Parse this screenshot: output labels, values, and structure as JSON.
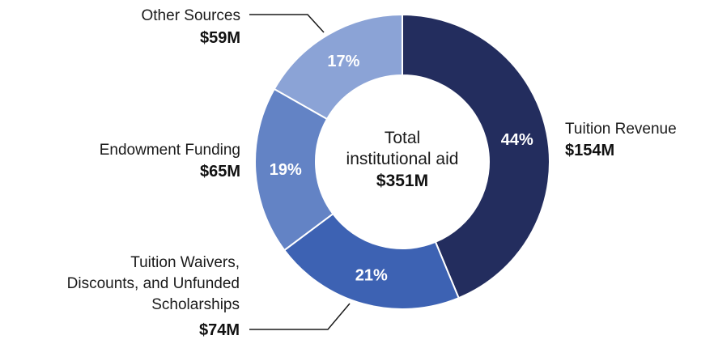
{
  "chart_data": {
    "type": "pie",
    "variant": "donut",
    "center": {
      "line1": "Total",
      "line2": "institutional aid",
      "value": "$351M"
    },
    "slices": [
      {
        "label": "Tuition Revenue",
        "value": 154,
        "value_label": "$154M",
        "percent": 44,
        "percent_label": "44%",
        "color": "#232d5e"
      },
      {
        "label": "Tuition Waivers, Discounts, and Unfunded Scholarships",
        "label_lines": [
          "Tuition Waivers,",
          "Discounts, and Unfunded",
          "Scholarships"
        ],
        "value": 74,
        "value_label": "$74M",
        "percent": 21,
        "percent_label": "21%",
        "color": "#3d62b3"
      },
      {
        "label": "Endowment Funding",
        "value": 65,
        "value_label": "$65M",
        "percent": 19,
        "percent_label": "19%",
        "color": "#6383c5"
      },
      {
        "label": "Other Sources",
        "value": 59,
        "value_label": "$59M",
        "percent": 17,
        "percent_label": "17%",
        "color": "#8ba3d6"
      }
    ],
    "units": "USD millions",
    "legend": "none"
  }
}
